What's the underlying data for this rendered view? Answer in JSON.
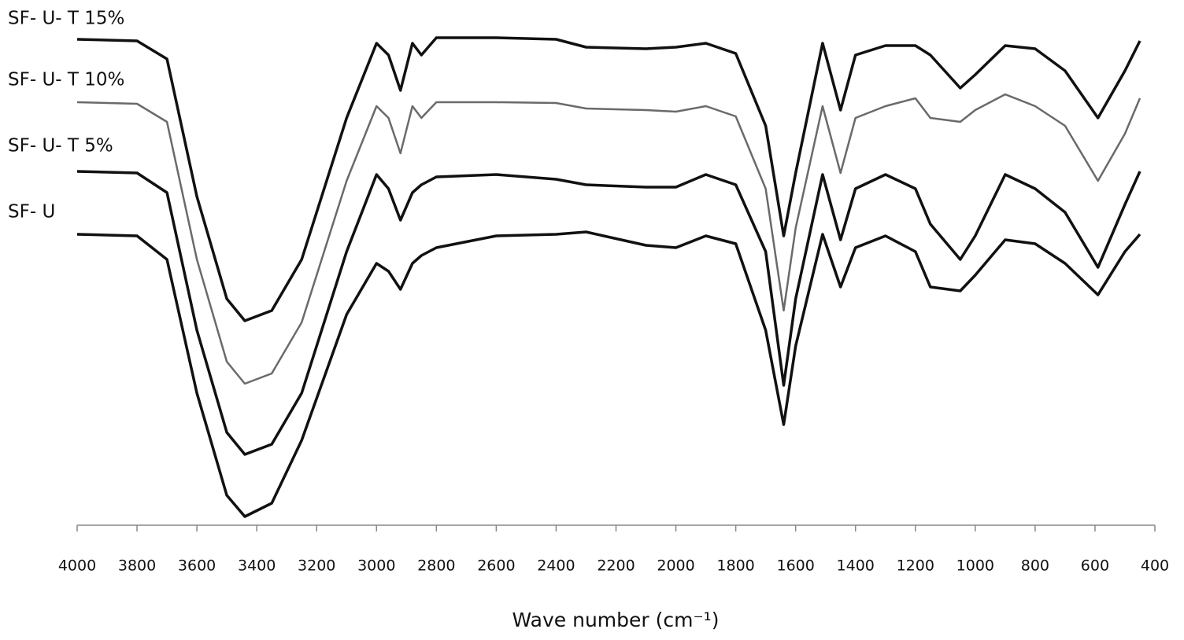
{
  "chart_data": {
    "type": "line",
    "x_label": "Wave number (cm⁻¹)",
    "x": [
      4000,
      3800,
      3700,
      3600,
      3500,
      3440,
      3350,
      3250,
      3100,
      3000,
      2960,
      2920,
      2880,
      2850,
      2800,
      2600,
      2400,
      2300,
      2100,
      2000,
      1900,
      1800,
      1700,
      1640,
      1600,
      1510,
      1450,
      1400,
      1300,
      1200,
      1150,
      1050,
      1000,
      900,
      800,
      700,
      590,
      500,
      450
    ],
    "xlim": [
      4000,
      400
    ],
    "xticks": [
      4000,
      3800,
      3600,
      3400,
      3200,
      3000,
      2800,
      2600,
      2400,
      2200,
      2000,
      1800,
      1600,
      1400,
      1200,
      1000,
      800,
      600,
      400
    ],
    "ylim": [
      0,
      628
    ],
    "series": [
      {
        "name": "SF- U- T 15%",
        "color": "#111111",
        "values": [
          618,
          616,
          593,
          418,
          288,
          260,
          273,
          338,
          518,
          613,
          598,
          553,
          613,
          598,
          620,
          620,
          618,
          608,
          606,
          608,
          613,
          600,
          508,
          368,
          448,
          613,
          528,
          598,
          610,
          610,
          598,
          556,
          573,
          610,
          606,
          578,
          518,
          578,
          616
        ]
      },
      {
        "name": "SF- U- T 10%",
        "color": "#6a6a6a",
        "values": [
          538,
          536,
          513,
          338,
          208,
          180,
          193,
          258,
          438,
          533,
          518,
          473,
          533,
          518,
          538,
          538,
          537,
          530,
          528,
          526,
          533,
          520,
          428,
          273,
          378,
          533,
          448,
          518,
          533,
          543,
          518,
          513,
          528,
          548,
          533,
          508,
          438,
          498,
          543
        ]
      },
      {
        "name": "SF- U- T 5%",
        "color": "#111111",
        "values": [
          450,
          448,
          423,
          248,
          118,
          90,
          103,
          168,
          348,
          446,
          428,
          388,
          423,
          433,
          443,
          446,
          440,
          433,
          430,
          430,
          446,
          433,
          348,
          178,
          288,
          446,
          363,
          428,
          446,
          428,
          383,
          338,
          368,
          446,
          428,
          398,
          328,
          408,
          450
        ]
      },
      {
        "name": "SF- U",
        "color": "#111111",
        "values": [
          370,
          368,
          338,
          168,
          38,
          11,
          28,
          108,
          268,
          333,
          323,
          300,
          333,
          343,
          353,
          368,
          370,
          373,
          356,
          353,
          368,
          358,
          248,
          128,
          228,
          370,
          303,
          353,
          368,
          348,
          303,
          298,
          318,
          363,
          358,
          333,
          293,
          348,
          370
        ]
      }
    ]
  }
}
